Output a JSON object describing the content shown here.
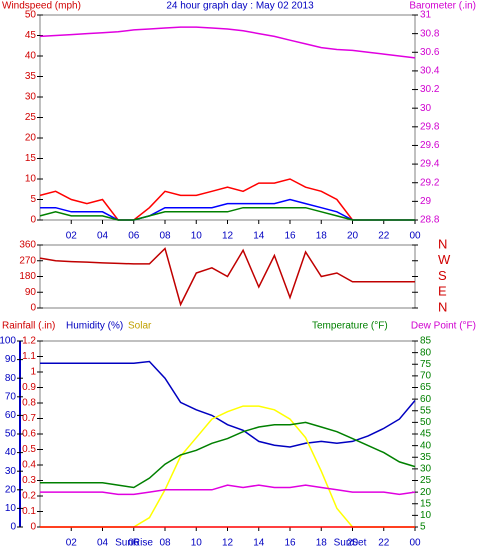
{
  "chart_data": [
    {
      "type": "line",
      "title": "24 hour graph day : May 02 2013",
      "ylabel": "Windspeed (mph)",
      "y2label": "Barometer (.in)",
      "x": [
        0,
        1,
        2,
        3,
        4,
        5,
        6,
        7,
        8,
        9,
        10,
        11,
        12,
        13,
        14,
        15,
        16,
        17,
        18,
        19,
        20,
        21,
        22,
        23,
        24
      ],
      "xlim": [
        0,
        24
      ],
      "xticks": [
        {
          "value": 2,
          "label": "02"
        },
        {
          "value": 4,
          "label": "04"
        },
        {
          "value": 6,
          "label": "06"
        },
        {
          "value": 8,
          "label": "08"
        },
        10,
        12,
        14,
        16,
        18,
        20,
        22,
        {
          "value": 24,
          "label": "00"
        }
      ],
      "ylim": [
        0,
        50
      ],
      "yticks": [
        0,
        5,
        10,
        15,
        20,
        25,
        30,
        35,
        40,
        45,
        50
      ],
      "y2lim": [
        28.8,
        31
      ],
      "y2ticks": [
        28.8,
        29,
        29.2,
        29.4,
        29.6,
        29.8,
        30,
        30.2,
        30.4,
        30.6,
        30.8,
        31
      ],
      "series": [
        {
          "color": "#ff0000",
          "values": [
            6,
            7,
            5,
            4,
            5,
            0,
            0,
            3,
            7,
            6,
            6,
            7,
            8,
            7,
            9,
            9,
            10,
            8,
            7,
            5,
            0,
            0,
            0,
            0,
            0
          ]
        },
        {
          "color": "#0000ff",
          "values": [
            3,
            3,
            2,
            2,
            2,
            0,
            0,
            1,
            3,
            3,
            3,
            3,
            4,
            4,
            4,
            4,
            5,
            4,
            3,
            2,
            0,
            0,
            0,
            0,
            0
          ]
        },
        {
          "color": "#008000",
          "values": [
            1,
            2,
            1,
            1,
            1,
            0,
            0,
            1,
            2,
            2,
            2,
            2,
            2,
            3,
            3,
            3,
            3,
            3,
            2,
            1,
            0,
            0,
            0,
            0,
            0
          ]
        },
        {
          "color": "#e000e0",
          "axis": "y2",
          "values": [
            30.77,
            30.78,
            30.79,
            30.8,
            30.81,
            30.82,
            30.84,
            30.85,
            30.86,
            30.87,
            30.87,
            30.86,
            30.85,
            30.83,
            30.8,
            30.77,
            30.73,
            30.69,
            30.65,
            30.63,
            30.62,
            30.6,
            30.58,
            30.56,
            30.54
          ]
        }
      ]
    },
    {
      "type": "line",
      "x": [
        0,
        1,
        2,
        3,
        4,
        5,
        6,
        7,
        8,
        9,
        10,
        11,
        12,
        13,
        14,
        15,
        16,
        17,
        18,
        19,
        20,
        21,
        22,
        23,
        24
      ],
      "xlim": [
        0,
        24
      ],
      "ylim": [
        0,
        360
      ],
      "yticks": [
        0,
        90,
        180,
        270,
        360
      ],
      "y2lim": [
        0,
        360
      ],
      "y2ticks": [
        {
          "value": 360,
          "label": "N"
        },
        {
          "value": 270,
          "label": "W"
        },
        {
          "value": 180,
          "label": "S"
        },
        {
          "value": 90,
          "label": "E"
        },
        {
          "value": 0,
          "label": "N"
        }
      ],
      "series": [
        {
          "color": "#c00000",
          "values": [
            285,
            270,
            265,
            262,
            258,
            255,
            252,
            252,
            340,
            20,
            200,
            230,
            180,
            330,
            120,
            300,
            60,
            320,
            180,
            200,
            150,
            150,
            150,
            150,
            150
          ]
        }
      ]
    },
    {
      "type": "line",
      "ylabel": "Rainfall (.in)",
      "y3label": "Humidity (%)",
      "solar_label": "Solar",
      "y2label": "Temperature (°F)",
      "dewpoint_label": "Dew Point (°F)",
      "annotations": [
        "SunRise",
        "SunSet"
      ],
      "x": [
        0,
        1,
        2,
        3,
        4,
        5,
        6,
        7,
        8,
        9,
        10,
        11,
        12,
        13,
        14,
        15,
        16,
        17,
        18,
        19,
        20,
        21,
        22,
        23,
        24
      ],
      "xlim": [
        0,
        24
      ],
      "xticks": [
        {
          "value": 2,
          "label": "02"
        },
        {
          "value": 4,
          "label": "04"
        },
        {
          "value": 6,
          "label": "06"
        },
        {
          "value": 8,
          "label": "08"
        },
        10,
        12,
        14,
        16,
        18,
        20,
        22,
        {
          "value": 24,
          "label": "00"
        }
      ],
      "ylim": [
        0,
        1.2
      ],
      "yticks": [
        0,
        0.1,
        0.2,
        0.3,
        0.4,
        0.5,
        0.6,
        0.7,
        0.8,
        0.9,
        1,
        1.1,
        1.2
      ],
      "y3lim": [
        0,
        100
      ],
      "y3ticks": [
        0,
        10,
        20,
        30,
        40,
        50,
        60,
        70,
        80,
        90,
        100
      ],
      "y2lim": [
        5,
        85
      ],
      "y2ticks": [
        5,
        10,
        15,
        20,
        25,
        30,
        35,
        40,
        45,
        50,
        55,
        60,
        65,
        70,
        75,
        80,
        85
      ],
      "series": [
        {
          "color": "#0000c0",
          "axis": "y3",
          "values": [
            88,
            88,
            88,
            88,
            88,
            88,
            88,
            89,
            80,
            67,
            63,
            60,
            55,
            52,
            46,
            44,
            43,
            45,
            46,
            45,
            46,
            49,
            53,
            58,
            68
          ]
        },
        {
          "color": "#ffff00",
          "axis": "y3",
          "values": [
            0,
            0,
            0,
            0,
            0,
            0,
            0,
            5,
            20,
            38,
            48,
            58,
            62,
            65,
            65,
            63,
            58,
            48,
            30,
            10,
            0,
            0,
            0,
            0,
            0
          ]
        },
        {
          "color": "#008000",
          "axis": "y2",
          "values": [
            24,
            24,
            24,
            24,
            24,
            23,
            22,
            26,
            32,
            36,
            38,
            41,
            43,
            46,
            48,
            49,
            49,
            50,
            48,
            46,
            43,
            40,
            37,
            33,
            31
          ]
        },
        {
          "color": "#e000e0",
          "axis": "y2",
          "values": [
            20,
            20,
            20,
            20,
            20,
            19,
            19,
            20,
            21,
            21,
            21,
            21,
            23,
            22,
            23,
            22,
            22,
            23,
            22,
            21,
            20,
            20,
            20,
            19,
            20
          ]
        },
        {
          "color": "#ff0000",
          "values": [
            0,
            0,
            0,
            0,
            0,
            0,
            0,
            0,
            0,
            0,
            0,
            0,
            0,
            0,
            0,
            0,
            0,
            0,
            0,
            0,
            0,
            0,
            0,
            0,
            0
          ]
        }
      ]
    }
  ]
}
